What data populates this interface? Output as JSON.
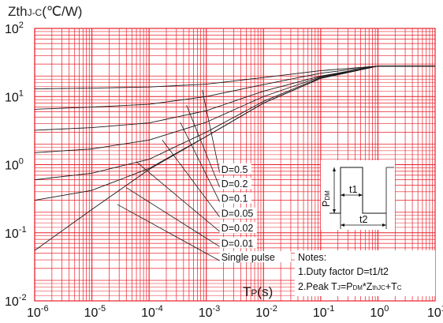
{
  "chart_data": {
    "type": "line",
    "ylabel": {
      "main": "Zth",
      "sub": "J-C",
      "unit": "(℃/W)"
    },
    "xlabel": {
      "main": "T",
      "sub": "P",
      "unit": "(s)"
    },
    "x_scale": "log",
    "y_scale": "log",
    "xlim": [
      1e-06,
      10
    ],
    "ylim": [
      0.01,
      100
    ],
    "grid": true,
    "grid_color": "#e8202a",
    "line_color": "#1a1a1a",
    "x_ticks": [
      {
        "base": "10",
        "exp": "-6"
      },
      {
        "base": "10",
        "exp": "-5"
      },
      {
        "base": "10",
        "exp": "-4"
      },
      {
        "base": "10",
        "exp": "-3"
      },
      {
        "base": "10",
        "exp": "-2"
      },
      {
        "base": "10",
        "exp": "-1"
      },
      {
        "base": "10",
        "exp": "0"
      },
      {
        "base": "10",
        "exp": "1"
      }
    ],
    "y_ticks": [
      {
        "base": "10",
        "exp": "-2"
      },
      {
        "base": "10",
        "exp": "-1"
      },
      {
        "base": "10",
        "exp": "0"
      },
      {
        "base": "10",
        "exp": "1"
      },
      {
        "base": "10",
        "exp": "2"
      }
    ],
    "series": [
      {
        "name": "D=0.5",
        "points": [
          [
            1e-06,
            13
          ],
          [
            1e-05,
            13.3
          ],
          [
            0.0001,
            13.8
          ],
          [
            0.001,
            15.2
          ],
          [
            0.01,
            19
          ],
          [
            0.1,
            24
          ],
          [
            1,
            28
          ],
          [
            10,
            28
          ]
        ],
        "label_at": [
          0.0011,
          0.8
        ]
      },
      {
        "name": "D=0.2",
        "points": [
          [
            1e-06,
            6.5
          ],
          [
            1e-05,
            7
          ],
          [
            0.0001,
            7.7
          ],
          [
            0.001,
            10
          ],
          [
            0.01,
            15
          ],
          [
            0.1,
            22
          ],
          [
            1,
            28
          ],
          [
            10,
            28
          ]
        ],
        "label_at": [
          0.0011,
          0.49
        ]
      },
      {
        "name": "D=0.1",
        "points": [
          [
            1e-06,
            3.2
          ],
          [
            1e-05,
            3.5
          ],
          [
            0.0001,
            4.1
          ],
          [
            0.001,
            6.2
          ],
          [
            0.01,
            12
          ],
          [
            0.1,
            20
          ],
          [
            1,
            28
          ],
          [
            10,
            28
          ]
        ],
        "label_at": [
          0.0011,
          0.3
        ]
      },
      {
        "name": "D=0.05",
        "points": [
          [
            1e-06,
            1.5
          ],
          [
            1e-05,
            1.7
          ],
          [
            0.0001,
            2.3
          ],
          [
            0.001,
            4.2
          ],
          [
            0.01,
            10
          ],
          [
            0.1,
            19.5
          ],
          [
            1,
            28
          ],
          [
            10,
            28
          ]
        ],
        "label_at": [
          0.0011,
          0.18
        ]
      },
      {
        "name": "D=0.02",
        "points": [
          [
            1e-06,
            0.6
          ],
          [
            1e-05,
            0.75
          ],
          [
            0.0001,
            1.2
          ],
          [
            0.001,
            3
          ],
          [
            0.01,
            8.5
          ],
          [
            0.1,
            19
          ],
          [
            1,
            28
          ],
          [
            10,
            28
          ]
        ],
        "label_at": [
          0.0011,
          0.11
        ]
      },
      {
        "name": "D=0.01",
        "points": [
          [
            1e-06,
            0.3
          ],
          [
            1e-05,
            0.42
          ],
          [
            0.0001,
            0.88
          ],
          [
            0.001,
            2.6
          ],
          [
            0.01,
            8
          ],
          [
            0.1,
            18.5
          ],
          [
            1,
            28
          ],
          [
            10,
            28
          ]
        ],
        "label_at": [
          0.0011,
          0.066
        ]
      },
      {
        "name": "Single pulse",
        "points": [
          [
            1e-06,
            0.055
          ],
          [
            1e-05,
            0.22
          ],
          [
            0.0001,
            0.85
          ],
          [
            0.001,
            2.6
          ],
          [
            0.01,
            8
          ],
          [
            0.1,
            18.5
          ],
          [
            1,
            28
          ],
          [
            10,
            28
          ]
        ],
        "label_at": [
          0.0011,
          0.041
        ]
      }
    ],
    "leader_lines": [
      [
        [
          0.00085,
          12.5
        ],
        [
          0.0011,
          0.8
        ]
      ],
      [
        [
          0.00045,
          7.5
        ],
        [
          0.0011,
          0.49
        ]
      ],
      [
        [
          0.00035,
          4.2
        ],
        [
          0.0011,
          0.3
        ]
      ],
      [
        [
          0.00017,
          2.3
        ],
        [
          0.0011,
          0.18
        ]
      ],
      [
        [
          6e-05,
          1.1
        ],
        [
          0.0011,
          0.11
        ]
      ],
      [
        [
          4e-05,
          0.46
        ],
        [
          0.0011,
          0.066
        ]
      ],
      [
        [
          2.8e-05,
          0.26
        ],
        [
          0.0011,
          0.041
        ]
      ]
    ],
    "inset": {
      "t1": "t1",
      "t2": "t2",
      "pdm_main": "P",
      "pdm_sub": "DM"
    },
    "notes": {
      "title": "Notes:",
      "line1": "1.Duty factor D=t1/t2",
      "line2": {
        "a": "2.Peak T",
        "a_sub": "J",
        "b": "=P",
        "b_sub": "DM",
        "c": "*Z",
        "c_sub": "thJC",
        "d": "+T",
        "d_sub": "C"
      }
    }
  }
}
